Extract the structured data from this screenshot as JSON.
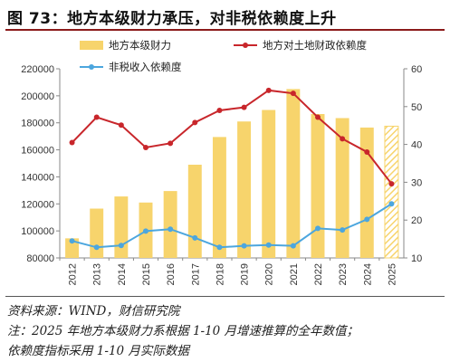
{
  "title": "图 73：地方本级财力承压，对非税依赖度上升",
  "source": "资料来源：WIND，财信研究院",
  "note_line1": "注：2025 年地方本级财力系根据 1-10 月增速推算的全年数值；",
  "note_line2": "依赖度指标采用 1-10 月实际数据",
  "colors": {
    "bar": "#F7D46C",
    "land_line": "#C8262B",
    "nontax_line": "#4CA6DE",
    "title_rule": "#8b1a1a"
  },
  "chart_data": {
    "type": "bar+line",
    "title": "图 73：地方本级财力承压，对非税依赖度上升",
    "categories": [
      "2012",
      "2013",
      "2014",
      "2015",
      "2016",
      "2017",
      "2018",
      "2019",
      "2020",
      "2021",
      "2022",
      "2023",
      "2024",
      "2025"
    ],
    "y_left": {
      "min": 80000,
      "max": 220000,
      "ticks": [
        80000,
        100000,
        120000,
        140000,
        160000,
        180000,
        200000,
        220000
      ]
    },
    "y_right": {
      "min": 10,
      "max": 60,
      "ticks": [
        10,
        20,
        30,
        40,
        50,
        60
      ]
    },
    "legend_position": "top",
    "grid": false,
    "series": [
      {
        "name": "地方本级财力",
        "type": "bar",
        "axis": "left",
        "values": [
          94500,
          116500,
          125500,
          121000,
          129500,
          149000,
          169500,
          181000,
          189500,
          205000,
          186500,
          183500,
          176500,
          177500
        ],
        "hatched_last": true
      },
      {
        "name": "地方对土地财政依赖度",
        "type": "line",
        "axis": "right",
        "values": [
          40.5,
          47.2,
          45.1,
          39.2,
          40.3,
          45.8,
          49.0,
          49.8,
          54.3,
          53.5,
          47.2,
          41.5,
          38.0,
          29.6
        ]
      },
      {
        "name": "非税收入依赖度",
        "type": "line",
        "axis": "right",
        "values": [
          14.5,
          12.8,
          13.3,
          17.1,
          17.6,
          15.3,
          12.8,
          13.2,
          13.4,
          13.2,
          17.8,
          17.4,
          20.2,
          24.3
        ]
      }
    ]
  }
}
